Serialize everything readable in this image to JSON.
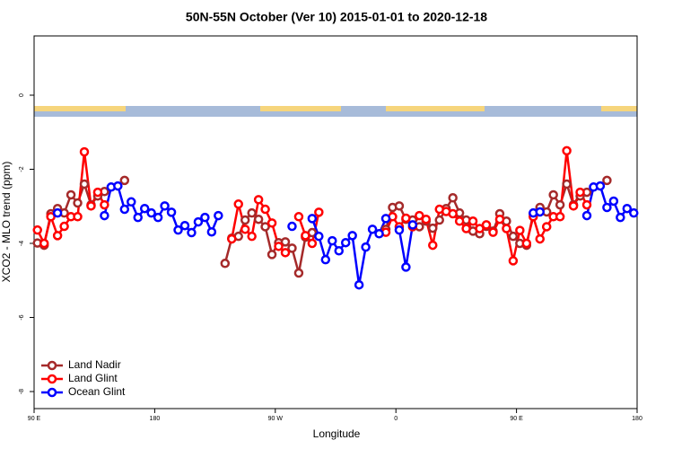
{
  "chart_data": {
    "type": "line",
    "title": "50N-55N October (Ver 10)   2015-01-01 to 2020-12-18",
    "x_label": "Longitude",
    "y_label": "XCO2 - MLO trend (ppm)",
    "xlim": [
      90,
      540
    ],
    "ylim": [
      -8.46,
      1.6
    ],
    "xticks": [
      {
        "value": 90,
        "label": "90 E"
      },
      180,
      {
        "value": 270,
        "label": "90 W"
      },
      {
        "value": 360,
        "label": "0"
      },
      {
        "value": 450,
        "label": "90 E"
      },
      {
        "value": 540,
        "label": "180"
      }
    ],
    "yticks": [
      0,
      -2,
      -4,
      -6,
      -8
    ],
    "legend": "lower left",
    "x": [
      92.5,
      97.5,
      102.5,
      107.5,
      112.5,
      117.5,
      122.5,
      127.5,
      132.5,
      137.5,
      142.5,
      147.5,
      152.5,
      157.5,
      162.5,
      167.5,
      172.5,
      177.5,
      182.5,
      187.5,
      192.5,
      197.5,
      202.5,
      207.5,
      212.5,
      217.5,
      222.5,
      227.5,
      232.5,
      237.5,
      242.5,
      247.5,
      252.5,
      257.5,
      262.5,
      267.5,
      272.5,
      277.5,
      282.5,
      287.5,
      292.5,
      297.5,
      302.5,
      307.5,
      312.5,
      317.5,
      322.5,
      327.5,
      332.5,
      337.5,
      342.5,
      347.5,
      352.5,
      357.5,
      362.5,
      367.5,
      372.5,
      377.5,
      382.5,
      387.5,
      392.5,
      397.5,
      402.5,
      407.5,
      412.5,
      417.5,
      422.5,
      427.5,
      432.5,
      437.5,
      442.5,
      447.5,
      452.5,
      457.5,
      462.5,
      467.5,
      472.5,
      477.5,
      482.5,
      487.5,
      492.5,
      497.5,
      502.5,
      507.5,
      512.5,
      517.5,
      522.5,
      527.5,
      532.5,
      537.5
    ],
    "series": [
      {
        "name": "Land Nadir",
        "color": "#a52a2a",
        "values": [
          -3.99,
          -4.05,
          -3.2,
          -3.06,
          -3.18,
          -2.69,
          -2.91,
          -2.4,
          -2.96,
          -2.72,
          -2.6,
          null,
          null,
          -2.3,
          null,
          null,
          null,
          null,
          null,
          null,
          null,
          null,
          null,
          null,
          null,
          null,
          null,
          null,
          -4.54,
          -3.86,
          -3.81,
          -3.37,
          -3.18,
          -3.35,
          -3.55,
          -4.3,
          -3.98,
          -3.96,
          -4.13,
          -4.8,
          -3.83,
          -3.71,
          null,
          null,
          null,
          null,
          null,
          null,
          null,
          null,
          null,
          null,
          -3.62,
          -3.03,
          -2.99,
          -3.35,
          -3.37,
          -3.55,
          -3.4,
          -3.59,
          -3.37,
          -3.06,
          -2.77,
          -3.18,
          -3.37,
          -3.67,
          -3.74,
          -3.54,
          -3.67,
          -3.2,
          -3.4,
          -3.81,
          -4.0,
          -4.05,
          -3.2,
          -3.03,
          -3.15,
          -2.69,
          -2.96,
          -2.4,
          -2.96,
          -2.72,
          -2.62,
          null,
          null,
          -2.3,
          null,
          null,
          null,
          null
        ]
      },
      {
        "name": "Land Glint",
        "color": "#ff0000",
        "values": [
          -3.64,
          -4.0,
          -3.28,
          -3.79,
          -3.54,
          -3.28,
          -3.28,
          -1.53,
          -2.99,
          -2.62,
          -2.96,
          null,
          null,
          null,
          null,
          null,
          null,
          null,
          null,
          null,
          null,
          null,
          null,
          null,
          null,
          null,
          null,
          null,
          null,
          -3.88,
          -2.94,
          -3.62,
          -3.81,
          -2.82,
          -3.08,
          -3.45,
          -4.08,
          -4.25,
          null,
          -3.28,
          -3.79,
          -4.0,
          -3.16,
          null,
          null,
          null,
          null,
          null,
          null,
          null,
          null,
          null,
          -3.7,
          -3.28,
          -3.55,
          -3.32,
          -3.55,
          -3.25,
          -3.35,
          -4.05,
          -3.08,
          -3.14,
          -3.2,
          -3.4,
          -3.6,
          -3.4,
          -3.6,
          -3.5,
          -3.7,
          -3.35,
          -3.6,
          -4.47,
          -3.65,
          -4.0,
          -3.28,
          -3.88,
          -3.55,
          -3.28,
          -3.28,
          -1.5,
          -2.99,
          -2.62,
          -2.96,
          null,
          null,
          null,
          null,
          null,
          null,
          null
        ]
      },
      {
        "name": "Ocean Glint",
        "color": "#0000ff",
        "values": [
          null,
          null,
          null,
          -3.18,
          null,
          null,
          null,
          null,
          null,
          null,
          -3.25,
          -2.48,
          -2.45,
          -3.08,
          -2.88,
          -3.3,
          -3.06,
          -3.18,
          -3.3,
          -2.99,
          -3.16,
          -3.64,
          -3.52,
          -3.71,
          -3.42,
          -3.3,
          -3.69,
          -3.25,
          null,
          null,
          null,
          null,
          null,
          null,
          null,
          null,
          null,
          null,
          -3.54,
          null,
          null,
          -3.33,
          -3.81,
          -4.44,
          -3.93,
          -4.2,
          -3.98,
          -3.79,
          -5.12,
          -4.1,
          -3.62,
          -3.74,
          -3.33,
          null,
          -3.64,
          -4.64,
          -3.5,
          null,
          null,
          null,
          null,
          null,
          null,
          null,
          null,
          null,
          null,
          null,
          null,
          null,
          null,
          null,
          null,
          null,
          -3.18,
          -3.15,
          null,
          null,
          null,
          null,
          null,
          null,
          -3.25,
          -2.48,
          -2.45,
          -3.03,
          -2.86,
          -3.3,
          -3.06,
          -3.18
        ]
      }
    ]
  }
}
